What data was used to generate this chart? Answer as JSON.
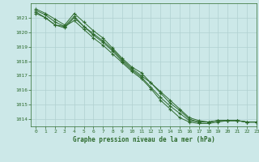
{
  "title": "Graphe pression niveau de la mer (hPa)",
  "bg_color": "#cce8e8",
  "grid_color": "#b0d0d0",
  "line_color": "#2d6a2d",
  "xlim": [
    -0.5,
    23
  ],
  "ylim": [
    1013.5,
    1022.0
  ],
  "yticks": [
    1014,
    1015,
    1016,
    1017,
    1018,
    1019,
    1020,
    1021
  ],
  "xticks": [
    0,
    1,
    2,
    3,
    4,
    5,
    6,
    7,
    8,
    9,
    10,
    11,
    12,
    13,
    14,
    15,
    16,
    17,
    18,
    19,
    20,
    21,
    22,
    23
  ],
  "series": [
    [
      1021.5,
      1021.2,
      1020.7,
      1020.4,
      1021.1,
      1020.4,
      1019.9,
      1019.4,
      1018.8,
      1018.1,
      1017.5,
      1017.0,
      1016.5,
      1015.8,
      1015.1,
      1014.6,
      1014.0,
      1013.8,
      1013.8,
      1013.9,
      1013.9,
      1013.9,
      1013.8,
      1013.8
    ],
    [
      1021.4,
      1021.0,
      1020.5,
      1020.4,
      1020.8,
      1020.2,
      1019.6,
      1019.1,
      1018.5,
      1017.9,
      1017.3,
      1016.8,
      1016.1,
      1015.3,
      1014.7,
      1014.1,
      1013.8,
      1013.7,
      1013.7,
      1013.8,
      1013.9,
      1013.9,
      1013.8,
      1013.8
    ],
    [
      1021.6,
      1021.3,
      1020.9,
      1020.5,
      1021.3,
      1020.7,
      1020.1,
      1019.6,
      1018.9,
      1018.2,
      1017.6,
      1017.2,
      1016.5,
      1015.9,
      1015.3,
      1014.7,
      1014.1,
      1013.9,
      1013.8,
      1013.9,
      1013.9,
      1013.9,
      1013.8,
      1013.8
    ],
    [
      1021.3,
      1021.0,
      1020.5,
      1020.3,
      1021.0,
      1020.4,
      1019.8,
      1019.3,
      1018.7,
      1018.0,
      1017.4,
      1016.9,
      1016.2,
      1015.5,
      1014.9,
      1014.4,
      1013.9,
      1013.8,
      1013.8,
      1013.9,
      1013.9,
      1013.9,
      1013.8,
      1013.8
    ]
  ]
}
